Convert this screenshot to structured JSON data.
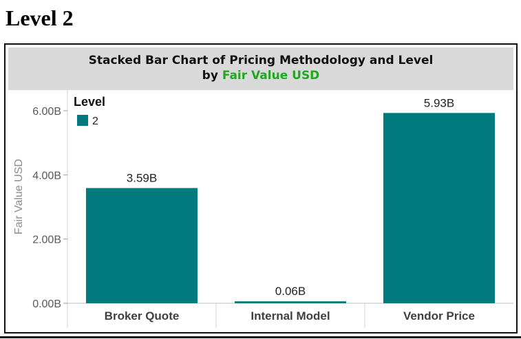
{
  "page": {
    "heading": "Level 2"
  },
  "chart_data": {
    "type": "bar",
    "title_line1": "Stacked Bar Chart of Pricing Methodology and Level",
    "title_line2_prefix": "by ",
    "title_line2_accent": "Fair Value USD",
    "xlabel": "",
    "ylabel": "Fair Value USD",
    "categories": [
      "Broker Quote",
      "Internal Model",
      "Vendor Price"
    ],
    "series": [
      {
        "name": "2",
        "values": [
          3.59,
          0.06,
          5.93
        ]
      }
    ],
    "data_labels": [
      "3.59B",
      "0.06B",
      "5.93B"
    ],
    "yticks": [
      0,
      2,
      4,
      6
    ],
    "ytick_labels": [
      "0.00B",
      "2.00B",
      "4.00B",
      "6.00B"
    ],
    "ylim": [
      0,
      6.5
    ],
    "unit": "B",
    "legend": {
      "title": "Level",
      "placement": "top-left"
    },
    "grid": false,
    "colors": {
      "bar": "#007a7c",
      "accent": "#1fa81f",
      "title_band": "#d9d9d9"
    }
  }
}
